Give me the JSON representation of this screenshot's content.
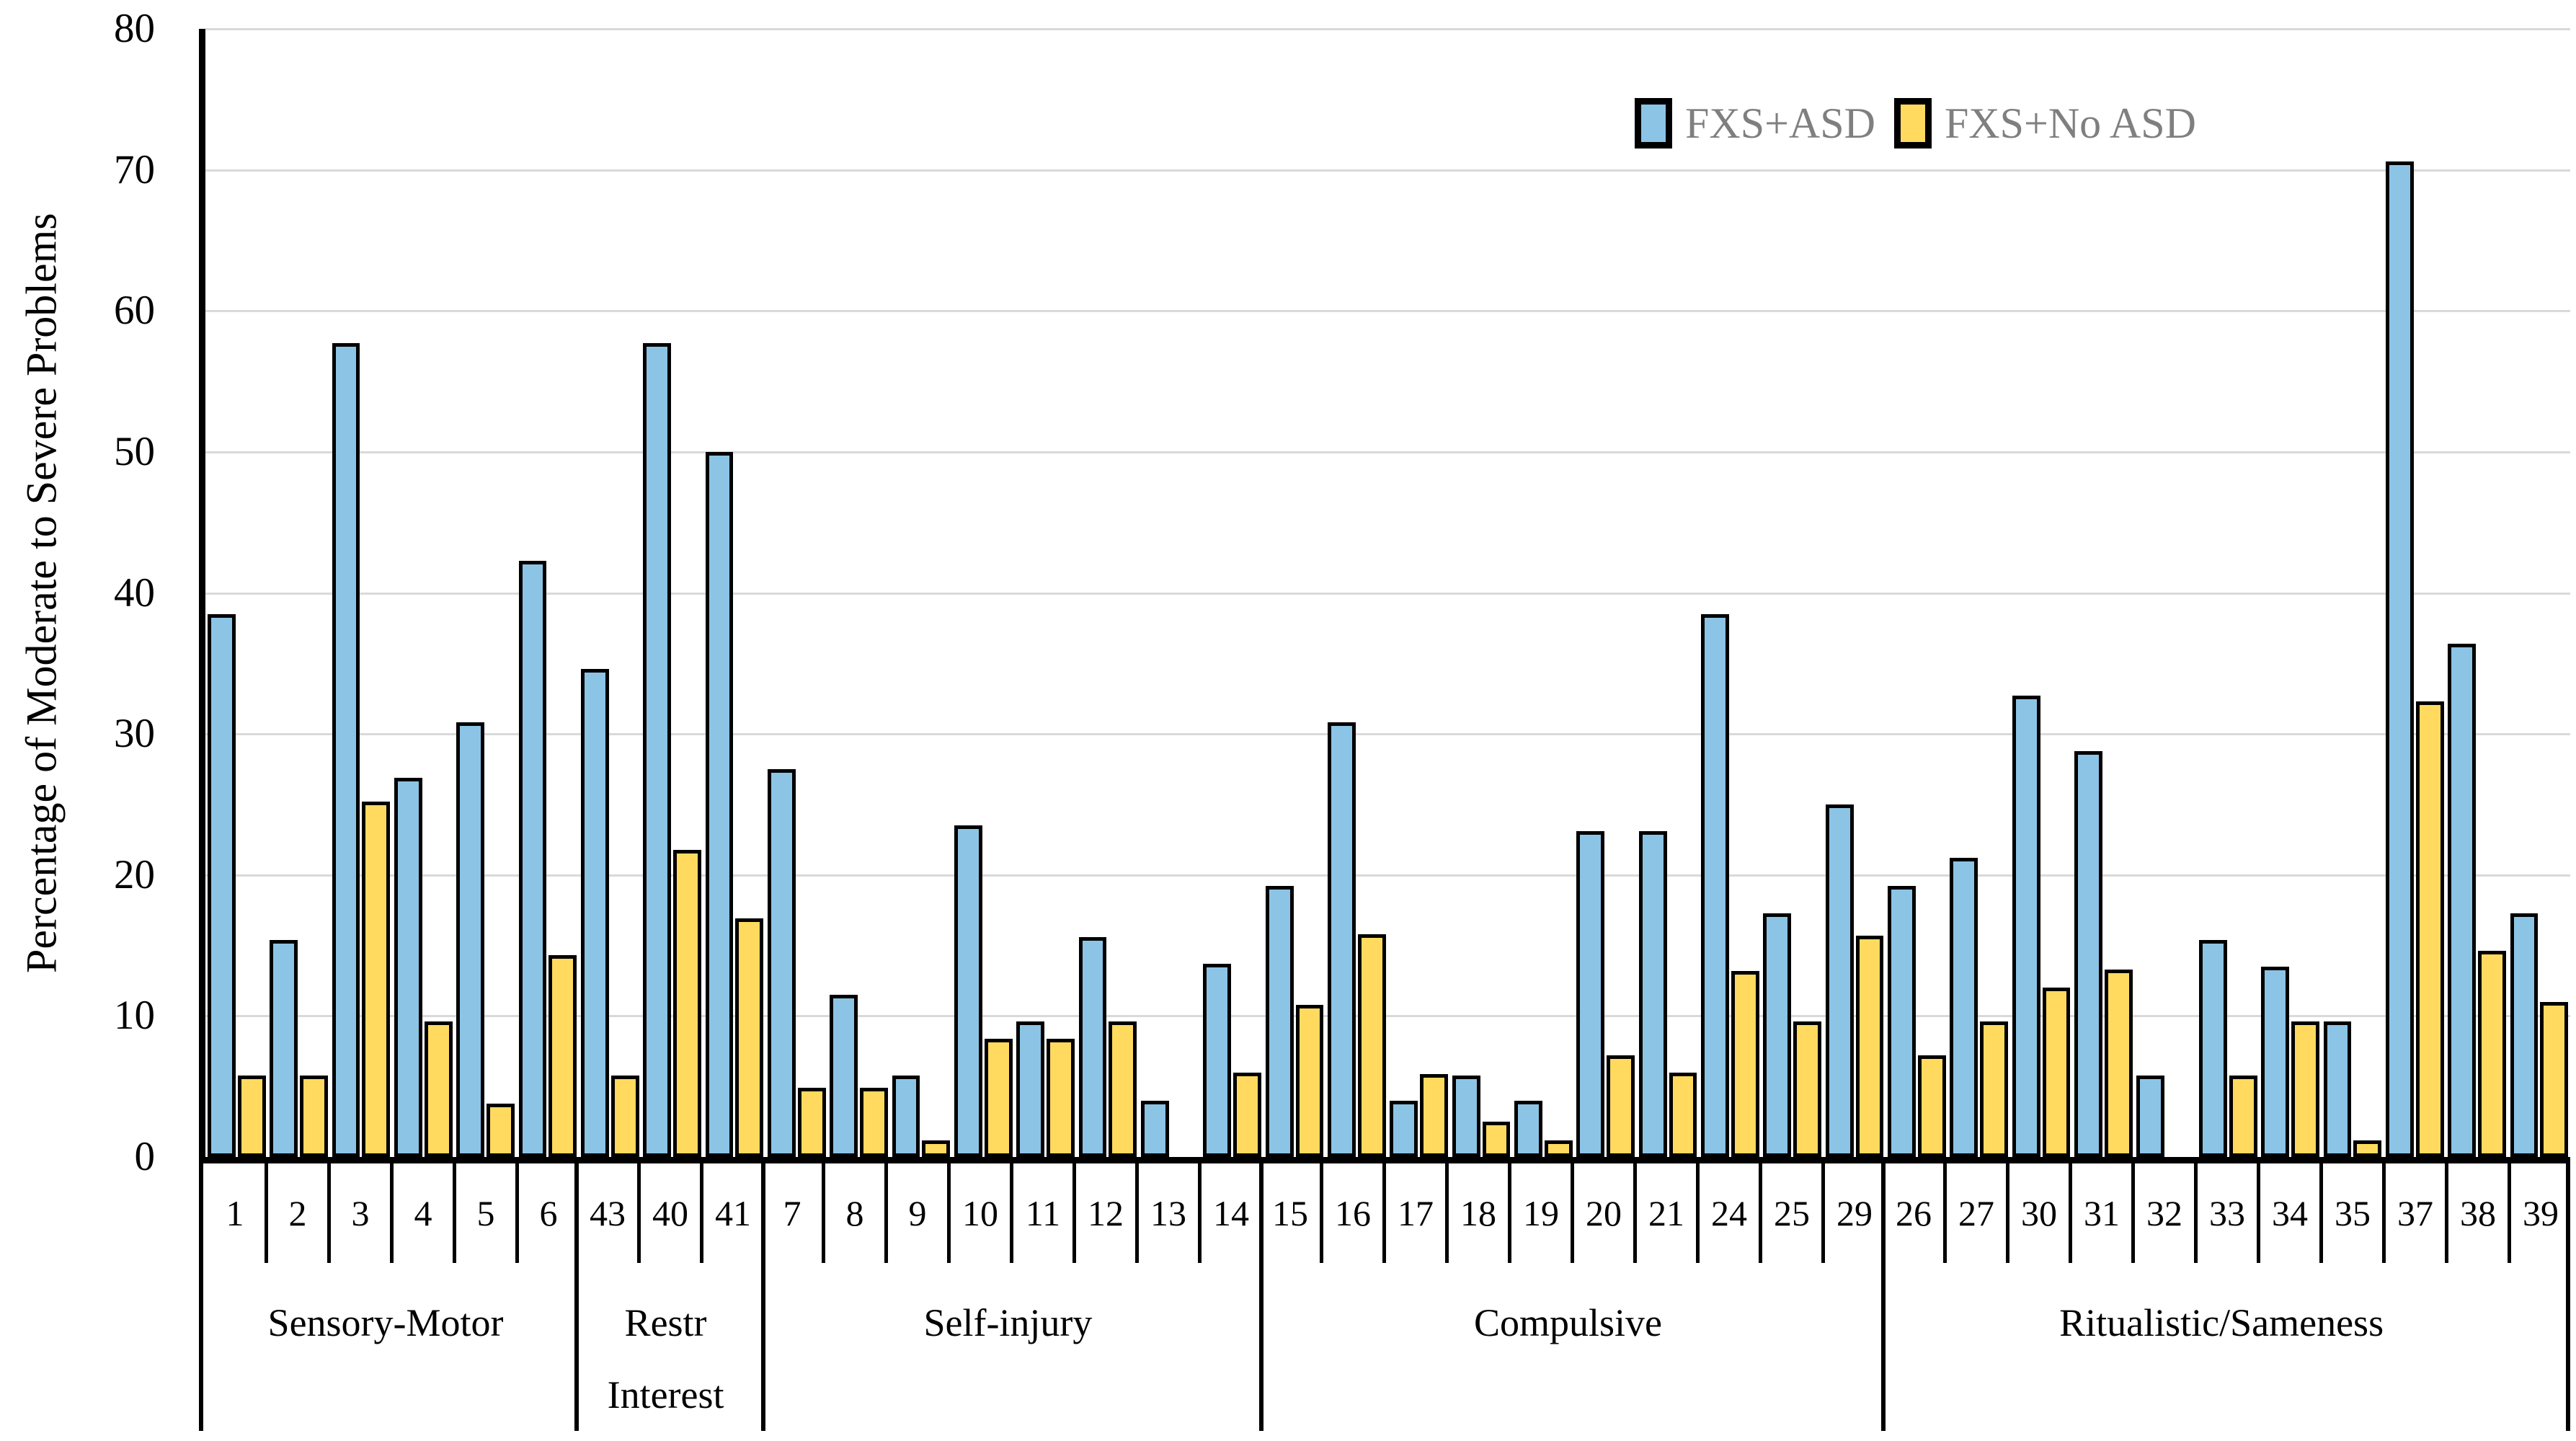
{
  "y_axis": {
    "title": "Percentage of Moderate to Severe Problems",
    "ticks": [
      "80",
      "70",
      "60",
      "50",
      "40",
      "30",
      "20",
      "10",
      "0"
    ]
  },
  "legend": {
    "items": [
      {
        "label": "FXS+ASD",
        "series_key": "fxs_asd"
      },
      {
        "label": "FXS+No ASD",
        "series_key": "fxs_no_asd"
      }
    ]
  },
  "colors": {
    "fxs_asd": "#8CC4E6",
    "fxs_no_asd": "#FFDA5E",
    "gridline": "#D9D9D9",
    "axis": "#000000",
    "legend_text": "#7F7F7F"
  },
  "chart_data": {
    "type": "bar",
    "title": "",
    "xlabel": "",
    "ylabel": "Percentage of Moderate to Severe Problems",
    "ylim": [
      0,
      80
    ],
    "y_tick_step": 10,
    "grid": true,
    "legend_position": "top-right",
    "series_names": [
      "FXS+ASD",
      "FXS+No ASD"
    ],
    "groups": [
      {
        "label_lines": [
          "Sensory-Motor"
        ],
        "categories": [
          "1",
          "2",
          "3",
          "4",
          "5",
          "6"
        ],
        "fxs_asd": [
          38.5,
          15.4,
          57.7,
          26.9,
          30.8,
          42.3
        ],
        "fxs_no_asd": [
          5.8,
          5.8,
          25.2,
          9.6,
          3.8,
          14.3
        ]
      },
      {
        "label_lines": [
          "Restr",
          "Interest"
        ],
        "categories": [
          "43",
          "40",
          "41"
        ],
        "fxs_asd": [
          34.6,
          57.7,
          50.0
        ],
        "fxs_no_asd": [
          5.8,
          21.8,
          16.9
        ]
      },
      {
        "label_lines": [
          "Self-injury"
        ],
        "categories": [
          "7",
          "8",
          "9",
          "10",
          "11",
          "12",
          "13",
          "14"
        ],
        "fxs_asd": [
          27.5,
          11.5,
          5.8,
          23.5,
          9.6,
          15.6,
          4.0,
          13.7
        ],
        "fxs_no_asd": [
          4.9,
          4.9,
          1.2,
          8.4,
          8.4,
          9.6,
          0,
          6.0
        ]
      },
      {
        "label_lines": [
          "Compulsive"
        ],
        "categories": [
          "15",
          "16",
          "17",
          "18",
          "19",
          "20",
          "21",
          "24",
          "25",
          "29"
        ],
        "fxs_asd": [
          19.2,
          30.8,
          4.0,
          5.8,
          4.0,
          23.1,
          23.1,
          38.5,
          17.3,
          25.0
        ],
        "fxs_no_asd": [
          10.8,
          15.8,
          5.9,
          2.5,
          1.2,
          7.2,
          6.0,
          13.2,
          9.6,
          15.7
        ]
      },
      {
        "label_lines": [
          "Ritualistic/Sameness"
        ],
        "categories": [
          "26",
          "27",
          "30",
          "31",
          "32",
          "33",
          "34",
          "35",
          "37",
          "38",
          "39"
        ],
        "fxs_asd": [
          19.2,
          21.2,
          32.7,
          28.8,
          5.8,
          15.4,
          13.5,
          9.6,
          70.6,
          36.4,
          17.3
        ],
        "fxs_no_asd": [
          7.2,
          9.6,
          12.0,
          13.3,
          0,
          5.8,
          9.6,
          1.2,
          32.3,
          14.6,
          11.0
        ]
      }
    ]
  }
}
